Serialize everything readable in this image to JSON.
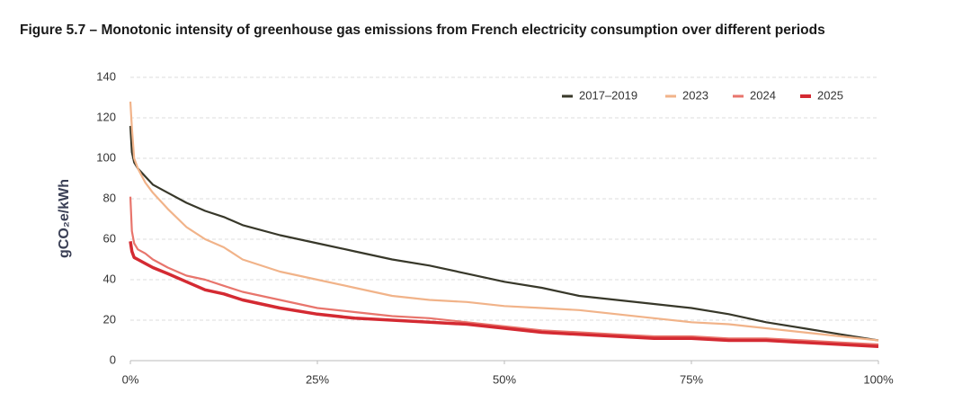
{
  "chart_data": {
    "type": "line",
    "title": "Figure 5.7 – Monotonic intensity of greenhouse gas emissions from French electricity consumption over different periods",
    "y_label": "gCO₂e/kWh",
    "x": [
      0,
      0.2,
      0.5,
      1,
      2,
      3,
      5,
      7.5,
      10,
      12.5,
      15,
      20,
      25,
      30,
      35,
      40,
      45,
      50,
      55,
      60,
      65,
      70,
      75,
      80,
      85,
      90,
      95,
      100
    ],
    "series": [
      {
        "name": "2017–2019",
        "color": "#38382a",
        "values": [
          116,
          103,
          98,
          95,
          91,
          87,
          83,
          78,
          74,
          71,
          67,
          62,
          58,
          54,
          50,
          47,
          43,
          39,
          36,
          32,
          30,
          28,
          26,
          23,
          19,
          16,
          13,
          10
        ]
      },
      {
        "name": "2023",
        "color": "#f1b389",
        "values": [
          128,
          115,
          100,
          95,
          88,
          83,
          75,
          66,
          60,
          56,
          50,
          44,
          40,
          36,
          32,
          30,
          29,
          27,
          26,
          25,
          23,
          21,
          19,
          18,
          16,
          14,
          12,
          10
        ]
      },
      {
        "name": "2024",
        "color": "#e8756c",
        "values": [
          81,
          64,
          58,
          55,
          53,
          50,
          46,
          42,
          40,
          37,
          34,
          30,
          26,
          24,
          22,
          21,
          19,
          17,
          15,
          14,
          13,
          12,
          12,
          11,
          11,
          10,
          9,
          8
        ]
      },
      {
        "name": "2025",
        "color": "#d42a32",
        "values": [
          59,
          54,
          51,
          50,
          48,
          46,
          43,
          39,
          35,
          33,
          30,
          26,
          23,
          21,
          20,
          19,
          18,
          16,
          14,
          13,
          12,
          11,
          11,
          10,
          10,
          9,
          8,
          7
        ]
      }
    ],
    "xlim": [
      0,
      100
    ],
    "xticks": [
      {
        "value": 0,
        "label": "0%"
      },
      {
        "value": 25,
        "label": "25%"
      },
      {
        "value": 50,
        "label": "50%"
      },
      {
        "value": 75,
        "label": "75%"
      },
      {
        "value": 100,
        "label": "100%"
      }
    ],
    "ylim": [
      0,
      140
    ],
    "yticks": [
      0,
      20,
      40,
      60,
      80,
      100,
      120,
      140
    ],
    "grid": true,
    "legend": "top-right"
  }
}
